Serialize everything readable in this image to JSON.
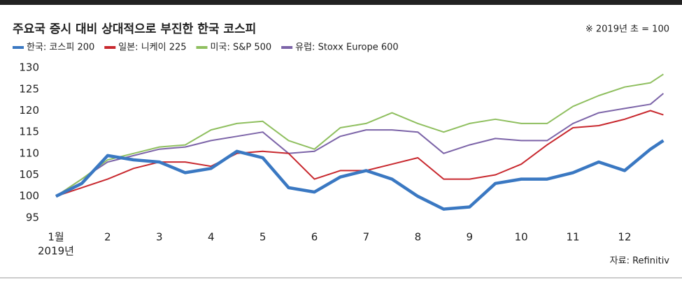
{
  "chart_data": {
    "type": "line",
    "title": "주요국 증시 대비 상대적으로 부진한 한국 코스피",
    "note": "※ 2019년 초 = 100",
    "source": "자료: Refinitiv",
    "x_axis_label": "2019년",
    "x": [
      1,
      1.5,
      2,
      2.5,
      3,
      3.5,
      4,
      4.5,
      5,
      5.5,
      6,
      6.5,
      7,
      7.5,
      8,
      8.5,
      9,
      9.5,
      10,
      10.5,
      11,
      11.5,
      12,
      12.5,
      12.75
    ],
    "series": [
      {
        "name": "한국: 코스피 200",
        "color": "#3a78c2",
        "values": [
          100,
          103,
          109.5,
          108.5,
          108,
          105.5,
          106.5,
          110.5,
          109,
          102,
          101,
          104.5,
          106,
          104,
          100,
          97,
          97.5,
          103,
          104,
          104,
          105.5,
          108,
          106,
          111,
          113
        ]
      },
      {
        "name": "일본: 니케이 225",
        "color": "#c8282e",
        "values": [
          100,
          102,
          104,
          106.5,
          108,
          108,
          107,
          110,
          110.5,
          110,
          104,
          106,
          106,
          107.5,
          109,
          104,
          104,
          105,
          107.5,
          112,
          116,
          116.5,
          118,
          120,
          119
        ]
      },
      {
        "name": "미국: S&P 500",
        "color": "#8fbf5f",
        "values": [
          100,
          104,
          108.5,
          110,
          111.5,
          112,
          115.5,
          117,
          117.5,
          113,
          111,
          116,
          117,
          119.5,
          117,
          115,
          117,
          118,
          117,
          117,
          121,
          123.5,
          125.5,
          126.5,
          128.5
        ]
      },
      {
        "name": "유럽: Stoxx Europe 600",
        "color": "#7c64a8",
        "values": [
          100,
          104,
          108,
          109.5,
          111,
          111.5,
          113,
          114,
          115,
          110,
          110.5,
          114,
          115.5,
          115.5,
          115,
          110,
          112,
          113.5,
          113,
          113,
          117,
          119.5,
          120.5,
          121.5,
          124
        ]
      }
    ],
    "xlim": [
      0.9,
      12.9
    ],
    "xticks": [
      {
        "value": 1,
        "label": "1월"
      },
      2,
      3,
      4,
      5,
      6,
      7,
      8,
      9,
      10,
      11,
      12
    ],
    "ylim": [
      94,
      131
    ],
    "yticks": [
      95,
      100,
      105,
      110,
      115,
      120,
      125,
      130
    ],
    "grid": false
  }
}
